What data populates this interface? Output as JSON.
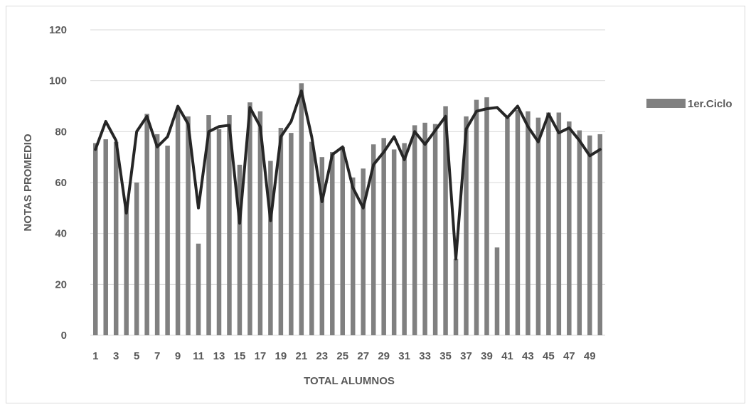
{
  "chart_data": {
    "type": "bar",
    "title": "",
    "xlabel": "TOTAL ALUMNOS",
    "ylabel": "NOTAS PROMEDIO",
    "ylim": [
      0,
      120
    ],
    "yticks": [
      0,
      20,
      40,
      60,
      80,
      100,
      120
    ],
    "xtick_labels": [
      "1",
      "3",
      "5",
      "7",
      "9",
      "11",
      "13",
      "15",
      "17",
      "19",
      "21",
      "23",
      "25",
      "27",
      "29",
      "31",
      "33",
      "35",
      "37",
      "39",
      "41",
      "43",
      "45",
      "47",
      "49"
    ],
    "categories": [
      1,
      2,
      3,
      4,
      5,
      6,
      7,
      8,
      9,
      10,
      11,
      12,
      13,
      14,
      15,
      16,
      17,
      18,
      19,
      20,
      21,
      22,
      23,
      24,
      25,
      26,
      27,
      28,
      29,
      30,
      31,
      32,
      33,
      34,
      35,
      36,
      37,
      38,
      39,
      40,
      41,
      42,
      43,
      44,
      45,
      46,
      47,
      48,
      49,
      50
    ],
    "grid": true,
    "legend_position": "right",
    "series": [
      {
        "name": "1er.Ciclo",
        "kind": "bar",
        "color": "#808080",
        "values": [
          75.5,
          77,
          76,
          51,
          60,
          87,
          79,
          74.5,
          89,
          86,
          36,
          86.5,
          81,
          86.5,
          67,
          91.5,
          88,
          68.5,
          81.5,
          79.5,
          99,
          76,
          70,
          72,
          74,
          62,
          65.5,
          75,
          77.5,
          73,
          75.5,
          82.5,
          83.5,
          83,
          90,
          30,
          86,
          92.5,
          93.5,
          34.5,
          85.5,
          88.5,
          88,
          85.5,
          87.5,
          87.5,
          84,
          80.5,
          78.5,
          79
        ]
      },
      {
        "kind": "line",
        "color": "#262626",
        "values": [
          73,
          84,
          76.5,
          48,
          80,
          86,
          74,
          78,
          90,
          83,
          50,
          80,
          82,
          82.5,
          44,
          89.5,
          82,
          45,
          78,
          84,
          96,
          78,
          52.5,
          71,
          74,
          58,
          50,
          67,
          72,
          78,
          69,
          80,
          75,
          80.5,
          86,
          30,
          81,
          88,
          89,
          89.5,
          85.5,
          90,
          82,
          76,
          87,
          79.5,
          81.5,
          76.5,
          70.5,
          73
        ]
      }
    ]
  }
}
